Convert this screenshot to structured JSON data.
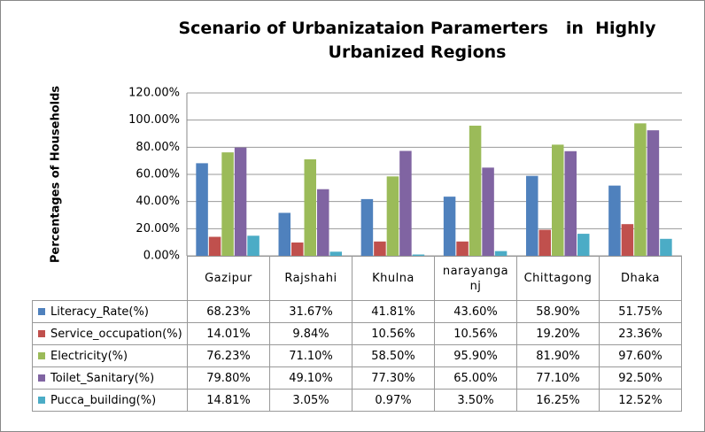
{
  "chart_data": {
    "type": "bar",
    "title": "Scenario of Urbanizataion Paramerters   in  Highly Urbanized Regions",
    "y_label": "Percentages of Households",
    "categories": [
      "Gazipur",
      "Rajshahi",
      "Khulna",
      "narayanganj",
      "Chittagong",
      "Dhaka"
    ],
    "ylim": [
      0,
      120
    ],
    "yticks": [
      {
        "value": 0,
        "label": "0.00%"
      },
      {
        "value": 20,
        "label": "20.00%"
      },
      {
        "value": 40,
        "label": "40.00%"
      },
      {
        "value": 60,
        "label": "60.00%"
      },
      {
        "value": 80,
        "label": "80.00%"
      },
      {
        "value": 100,
        "label": "100.00%"
      },
      {
        "value": 120,
        "label": "120.00%"
      }
    ],
    "grid": true,
    "series": [
      {
        "name": "Literacy_Rate(%)",
        "color": "#4F81BD",
        "values": [
          68.23,
          31.67,
          41.81,
          43.6,
          58.9,
          51.75
        ],
        "value_labels": [
          "68.23%",
          "31.67%",
          "41.81%",
          "43.60%",
          "58.90%",
          "51.75%"
        ]
      },
      {
        "name": "Service_occupation(%)",
        "color": "#C0504D",
        "values": [
          14.01,
          9.84,
          10.56,
          10.56,
          19.2,
          23.36
        ],
        "value_labels": [
          "14.01%",
          "9.84%",
          "10.56%",
          "10.56%",
          "19.20%",
          "23.36%"
        ]
      },
      {
        "name": "Electricity(%)",
        "color": "#9BBB59",
        "values": [
          76.23,
          71.1,
          58.5,
          95.9,
          81.9,
          97.6
        ],
        "value_labels": [
          "76.23%",
          "71.10%",
          "58.50%",
          "95.90%",
          "81.90%",
          "97.60%"
        ]
      },
      {
        "name": "Toilet_Sanitary(%)",
        "color": "#8064A2",
        "values": [
          79.8,
          49.1,
          77.3,
          65.0,
          77.1,
          92.5
        ],
        "value_labels": [
          "79.80%",
          "49.10%",
          "77.30%",
          "65.00%",
          "77.10%",
          "92.50%"
        ]
      },
      {
        "name": "Pucca_building(%)",
        "color": "#4BACC6",
        "values": [
          14.81,
          3.05,
          0.97,
          3.5,
          16.25,
          12.52
        ],
        "value_labels": [
          "14.81%",
          "3.05%",
          "0.97%",
          "3.50%",
          "16.25%",
          "12.52%"
        ]
      }
    ]
  }
}
